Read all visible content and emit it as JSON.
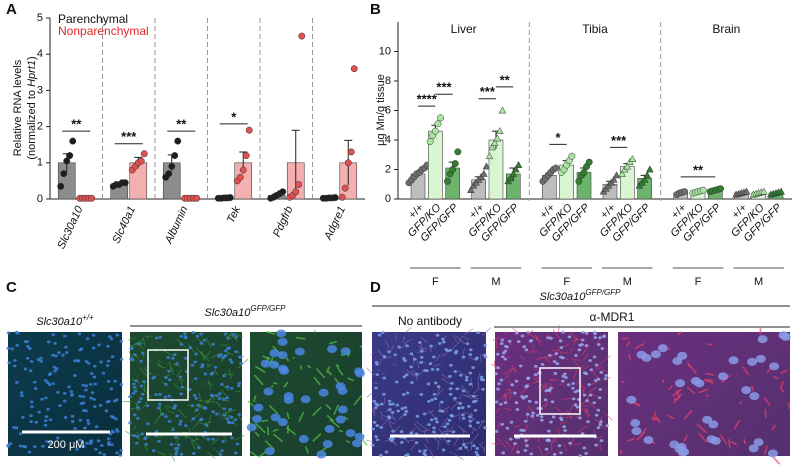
{
  "chart_data": [
    {
      "type": "bar",
      "label": "A",
      "y_label": {
        "line1": "Relative RNA levels",
        "line2_pre": "(normalized to ",
        "line2_italic": "Hprt1",
        "line2_post": ")"
      },
      "categories": [
        "Slc30a10",
        "Slc40a1",
        "Albumin",
        "Tek",
        "Pdgfrb",
        "Adgre1"
      ],
      "ylim": [
        0,
        5
      ],
      "yticks": [
        0,
        1,
        2,
        3,
        4,
        5
      ],
      "series": [
        {
          "name": "Parenchymal",
          "color": "#8c8c8c",
          "text_color": "#111111",
          "point_color": "#1e1e1e",
          "values": [
            1.0,
            0.41,
            1.0,
            0.03,
            0.1,
            0.03
          ],
          "errors": [
            0.25,
            0.03,
            0.22,
            0.01,
            0.04,
            0.01
          ],
          "points": [
            [
              0.35,
              0.7,
              1.05,
              1.2,
              1.6
            ],
            [
              0.35,
              0.4,
              0.4,
              0.45,
              0.45
            ],
            [
              0.6,
              0.7,
              0.9,
              1.2,
              1.6
            ],
            [
              0.02,
              0.02,
              0.03,
              0.03,
              0.04
            ],
            [
              0.02,
              0.05,
              0.1,
              0.15,
              0.2
            ],
            [
              0.02,
              0.02,
              0.03,
              0.03,
              0.04
            ]
          ]
        },
        {
          "name": "Nonparenchymal",
          "color": "#f4b0b0",
          "text_color": "#e0262e",
          "point_color": "#e05050",
          "values": [
            0.02,
            1.0,
            0.02,
            1.0,
            1.0,
            1.0
          ],
          "errors": [
            0.01,
            0.15,
            0.01,
            0.3,
            0.9,
            0.62
          ],
          "points": [
            [
              0.02,
              0.02,
              0.02,
              0.02,
              0.02
            ],
            [
              0.8,
              0.9,
              1.0,
              1.05,
              1.25
            ],
            [
              0.02,
              0.02,
              0.02,
              0.02,
              0.02
            ],
            [
              0.5,
              0.6,
              0.8,
              1.2,
              1.9
            ],
            [
              0.05,
              0.1,
              0.2,
              0.4,
              4.5
            ],
            [
              0.05,
              0.3,
              1.0,
              1.3,
              3.6
            ]
          ]
        }
      ],
      "annotations": [
        {
          "label": "**",
          "category": 0
        },
        {
          "label": "***",
          "category": 1
        },
        {
          "label": "**",
          "category": 2
        },
        {
          "label": "*",
          "category": 3
        }
      ]
    },
    {
      "type": "grouped-bar",
      "label": "B",
      "y_label": "μg Mn/g tissue",
      "ylim": [
        0,
        12
      ],
      "yticks": [
        0,
        2,
        4,
        6,
        8,
        10
      ],
      "bar_colors": [
        "#bdbdbd",
        "#d9f5d2",
        "#6cb46c"
      ],
      "point_colors": [
        "#6e6e6e",
        "#a8e6a0",
        "#2f7f2f"
      ],
      "sex_markers": [
        "circle",
        "triangle"
      ],
      "groups": [
        {
          "name": "Liver",
          "sexes": [
            {
              "name": "F",
              "genotypes": [
                "+/+",
                "GFP/KO",
                "GFP/GFP"
              ],
              "values": [
                1.7,
                4.6,
                2.1
              ],
              "errors": [
                0.15,
                0.4,
                0.4
              ],
              "points": [
                [
                  1.1,
                  1.3,
                  1.5,
                  1.7,
                  1.8,
                  2.0,
                  2.1,
                  2.3
                ],
                [
                  3.9,
                  4.3,
                  4.6,
                  5.1,
                  5.5
                ],
                [
                  1.2,
                  1.7,
                  2.0,
                  2.4,
                  3.2
                ]
              ]
            },
            {
              "name": "M",
              "genotypes": [
                "+/+",
                "GFP/KO",
                "GFP/GFP"
              ],
              "values": [
                1.3,
                4.0,
                1.7
              ],
              "errors": [
                0.2,
                0.6,
                0.4
              ],
              "points": [
                [
                  0.6,
                  0.9,
                  1.1,
                  1.3,
                  1.5,
                  1.7,
                  2.2
                ],
                [
                  2.9,
                  3.5,
                  3.8,
                  4.1,
                  4.6,
                  6.0
                ],
                [
                  1.2,
                  1.4,
                  1.7,
                  2.0,
                  2.3
                ]
              ]
            }
          ]
        },
        {
          "name": "Tibia",
          "sexes": [
            {
              "name": "F",
              "genotypes": [
                "+/+",
                "GFP/KO",
                "GFP/GFP"
              ],
              "values": [
                1.6,
                2.3,
                1.8
              ],
              "errors": [
                0.15,
                0.3,
                0.3
              ],
              "points": [
                [
                  1.2,
                  1.4,
                  1.6,
                  1.8,
                  2.0,
                  2.1
                ],
                [
                  1.8,
                  2.0,
                  2.3,
                  2.6,
                  2.9
                ],
                [
                  1.2,
                  1.6,
                  1.8,
                  2.2,
                  2.5
                ]
              ]
            },
            {
              "name": "M",
              "genotypes": [
                "+/+",
                "GFP/KO",
                "GFP/GFP"
              ],
              "values": [
                1.0,
                2.2,
                1.4
              ],
              "errors": [
                0.2,
                0.2,
                0.2
              ],
              "points": [
                [
                  0.5,
                  0.7,
                  0.9,
                  1.1,
                  1.3,
                  1.6
                ],
                [
                  1.7,
                  2.0,
                  2.2,
                  2.5,
                  2.7
                ],
                [
                  0.9,
                  1.1,
                  1.3,
                  1.6,
                  2.0
                ]
              ]
            }
          ]
        },
        {
          "name": "Brain",
          "sexes": [
            {
              "name": "F",
              "genotypes": [
                "+/+",
                "GFP/KO",
                "GFP/GFP"
              ],
              "values": [
                0.4,
                0.5,
                0.6
              ],
              "errors": [
                0.05,
                0.05,
                0.05
              ],
              "points": [
                [
                  0.3,
                  0.4,
                  0.45,
                  0.5
                ],
                [
                  0.4,
                  0.45,
                  0.5,
                  0.55,
                  0.6
                ],
                [
                  0.5,
                  0.55,
                  0.6,
                  0.65,
                  0.7
                ]
              ]
            },
            {
              "name": "M",
              "genotypes": [
                "+/+",
                "GFP/KO",
                "GFP/GFP"
              ],
              "values": [
                0.4,
                0.4,
                0.4
              ],
              "errors": [
                0.05,
                0.05,
                0.05
              ],
              "points": [
                [
                  0.3,
                  0.35,
                  0.4,
                  0.45,
                  0.5
                ],
                [
                  0.3,
                  0.35,
                  0.4,
                  0.45,
                  0.5
                ],
                [
                  0.3,
                  0.35,
                  0.4,
                  0.45,
                  0.5
                ]
              ]
            }
          ]
        }
      ],
      "annotations": [
        {
          "label": "****",
          "from": [
            0,
            0,
            0
          ],
          "to": [
            0,
            0,
            1
          ]
        },
        {
          "label": "***",
          "from": [
            0,
            0,
            1
          ],
          "to": [
            0,
            0,
            2
          ]
        },
        {
          "label": "***",
          "from": [
            0,
            1,
            0
          ],
          "to": [
            0,
            1,
            1
          ]
        },
        {
          "label": "**",
          "from": [
            0,
            1,
            1
          ],
          "to": [
            0,
            1,
            2
          ]
        },
        {
          "label": "*",
          "from": [
            1,
            0,
            0
          ],
          "to": [
            1,
            0,
            1
          ]
        },
        {
          "label": "***",
          "from": [
            1,
            1,
            0
          ],
          "to": [
            1,
            1,
            1
          ]
        },
        {
          "label": "**",
          "from": [
            2,
            0,
            0
          ],
          "to": [
            2,
            0,
            2
          ]
        }
      ]
    }
  ],
  "panel_c": {
    "label": "C",
    "wt": {
      "base": "Slc30a10",
      "sup": "+/+"
    },
    "ko": {
      "base": "Slc30a10",
      "sup": "GFP/GFP"
    },
    "scale": "200 μM"
  },
  "panel_d": {
    "label": "D",
    "header": {
      "base": "Slc30a10",
      "sup": "GFP/GFP"
    },
    "no_antibody": "No antibody",
    "antibody": "α-MDR1"
  }
}
